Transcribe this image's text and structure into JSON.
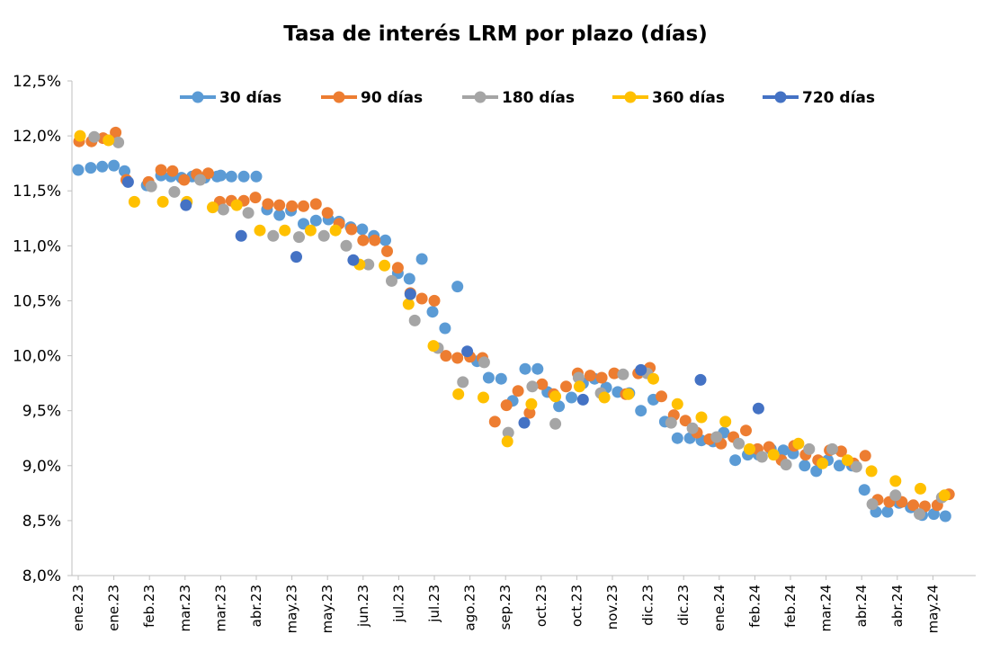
{
  "chart_data": {
    "type": "scatter",
    "title": "Tasa de interés LRM por plazo (días)",
    "xlabel": "",
    "ylabel": "",
    "ylim": [
      8.0,
      12.5
    ],
    "yticks": [
      "8,0%",
      "8,5%",
      "9,0%",
      "9,5%",
      "10,0%",
      "10,5%",
      "11,0%",
      "11,5%",
      "12,0%",
      "12,5%"
    ],
    "xlim": [
      0,
      100
    ],
    "xticks": [
      {
        "x": 0,
        "label": "ene.23"
      },
      {
        "x": 4,
        "label": "ene.23"
      },
      {
        "x": 8,
        "label": "feb.23"
      },
      {
        "x": 12,
        "label": "mar.23"
      },
      {
        "x": 16,
        "label": "mar.23"
      },
      {
        "x": 20,
        "label": "abr.23"
      },
      {
        "x": 24,
        "label": "may.23"
      },
      {
        "x": 28,
        "label": "may.23"
      },
      {
        "x": 32,
        "label": "jun.23"
      },
      {
        "x": 36,
        "label": "jul.23"
      },
      {
        "x": 40,
        "label": "jul.23"
      },
      {
        "x": 44,
        "label": "ago.23"
      },
      {
        "x": 48,
        "label": "sep.23"
      },
      {
        "x": 52,
        "label": "oct.23"
      },
      {
        "x": 56,
        "label": "oct.23"
      },
      {
        "x": 60,
        "label": "nov.23"
      },
      {
        "x": 64,
        "label": "dic.23"
      },
      {
        "x": 68,
        "label": "dic.23"
      },
      {
        "x": 72,
        "label": "ene.24"
      },
      {
        "x": 76,
        "label": "feb.24"
      },
      {
        "x": 80,
        "label": "feb.24"
      },
      {
        "x": 84,
        "label": "mar.24"
      },
      {
        "x": 88,
        "label": "abr.24"
      },
      {
        "x": 92,
        "label": "abr.24"
      },
      {
        "x": 96,
        "label": "may.24"
      }
    ],
    "grid": false,
    "legend_position": "top",
    "series": [
      {
        "name": "30 días",
        "color": "#5B9BD5",
        "points": [
          [
            0,
            11.69
          ],
          [
            1.4,
            11.71
          ],
          [
            2.7,
            11.72
          ],
          [
            4,
            11.73
          ],
          [
            5.2,
            11.68
          ],
          [
            7.7,
            11.55
          ],
          [
            9.3,
            11.64
          ],
          [
            10.4,
            11.63
          ],
          [
            11.6,
            11.62
          ],
          [
            12.8,
            11.63
          ],
          [
            14.2,
            11.62
          ],
          [
            15.6,
            11.63
          ],
          [
            16,
            11.64
          ],
          [
            17.2,
            11.63
          ],
          [
            18.6,
            11.63
          ],
          [
            20,
            11.63
          ],
          [
            21.2,
            11.33
          ],
          [
            22.6,
            11.28
          ],
          [
            23.9,
            11.32
          ],
          [
            25.3,
            11.2
          ],
          [
            26.7,
            11.23
          ],
          [
            28.1,
            11.24
          ],
          [
            29.3,
            11.22
          ],
          [
            30.6,
            11.17
          ],
          [
            31.9,
            11.15
          ],
          [
            33.2,
            11.09
          ],
          [
            34.5,
            11.05
          ],
          [
            35.9,
            10.75
          ],
          [
            37.2,
            10.7
          ],
          [
            38.6,
            10.88
          ],
          [
            39.8,
            10.4
          ],
          [
            41.2,
            10.25
          ],
          [
            42.6,
            10.63
          ],
          [
            44.8,
            9.95
          ],
          [
            46.1,
            9.8
          ],
          [
            47.5,
            9.79
          ],
          [
            48.8,
            9.59
          ],
          [
            50.2,
            9.88
          ],
          [
            51.6,
            9.88
          ],
          [
            52.7,
            9.67
          ],
          [
            54,
            9.54
          ],
          [
            55.4,
            9.62
          ],
          [
            56.7,
            9.75
          ],
          [
            58,
            9.79
          ],
          [
            59.3,
            9.71
          ],
          [
            60.6,
            9.67
          ],
          [
            61.9,
            9.66
          ],
          [
            63.2,
            9.5
          ],
          [
            64.6,
            9.6
          ],
          [
            65.9,
            9.4
          ],
          [
            67.3,
            9.25
          ],
          [
            68.7,
            9.25
          ],
          [
            70,
            9.23
          ],
          [
            71.3,
            9.22
          ],
          [
            72.5,
            9.3
          ],
          [
            73.8,
            9.05
          ],
          [
            75.2,
            9.1
          ],
          [
            76.4,
            9.1
          ],
          [
            77.8,
            9.15
          ],
          [
            79.2,
            9.14
          ],
          [
            80.3,
            9.11
          ],
          [
            81.6,
            9.0
          ],
          [
            82.9,
            8.95
          ],
          [
            84.2,
            9.05
          ],
          [
            85.5,
            9.0
          ],
          [
            86.9,
            9.0
          ],
          [
            88.3,
            8.78
          ],
          [
            89.6,
            8.58
          ],
          [
            90.9,
            8.58
          ],
          [
            92.2,
            8.66
          ],
          [
            93.5,
            8.62
          ],
          [
            94.8,
            8.55
          ],
          [
            96.1,
            8.56
          ],
          [
            97.4,
            8.54
          ]
        ]
      },
      {
        "name": "90 días",
        "color": "#ED7D31",
        "points": [
          [
            0.1,
            11.95
          ],
          [
            1.5,
            11.95
          ],
          [
            2.8,
            11.98
          ],
          [
            4.2,
            12.03
          ],
          [
            5.4,
            11.6
          ],
          [
            7.9,
            11.58
          ],
          [
            9.3,
            11.69
          ],
          [
            10.6,
            11.68
          ],
          [
            11.9,
            11.6
          ],
          [
            13.3,
            11.65
          ],
          [
            14.6,
            11.66
          ],
          [
            15.9,
            11.4
          ],
          [
            17.2,
            11.41
          ],
          [
            18.6,
            11.41
          ],
          [
            19.9,
            11.44
          ],
          [
            21.3,
            11.38
          ],
          [
            22.6,
            11.37
          ],
          [
            24,
            11.36
          ],
          [
            25.3,
            11.36
          ],
          [
            26.7,
            11.38
          ],
          [
            28,
            11.3
          ],
          [
            29.3,
            11.2
          ],
          [
            30.7,
            11.15
          ],
          [
            32,
            11.05
          ],
          [
            33.3,
            11.05
          ],
          [
            34.7,
            10.95
          ],
          [
            35.9,
            10.8
          ],
          [
            37.3,
            10.57
          ],
          [
            38.6,
            10.52
          ],
          [
            40,
            10.5
          ],
          [
            41.3,
            10.0
          ],
          [
            42.6,
            9.98
          ],
          [
            44,
            9.99
          ],
          [
            45.4,
            9.98
          ],
          [
            46.8,
            9.4
          ],
          [
            48.1,
            9.55
          ],
          [
            49.4,
            9.68
          ],
          [
            50.7,
            9.48
          ],
          [
            52.1,
            9.74
          ],
          [
            53.4,
            9.65
          ],
          [
            54.8,
            9.72
          ],
          [
            56.1,
            9.84
          ],
          [
            57.5,
            9.82
          ],
          [
            58.8,
            9.8
          ],
          [
            60.2,
            9.84
          ],
          [
            61.5,
            9.65
          ],
          [
            62.9,
            9.84
          ],
          [
            64.2,
            9.89
          ],
          [
            65.5,
            9.63
          ],
          [
            66.9,
            9.46
          ],
          [
            68.2,
            9.41
          ],
          [
            69.5,
            9.3
          ],
          [
            70.9,
            9.24
          ],
          [
            72.2,
            9.2
          ],
          [
            73.6,
            9.26
          ],
          [
            75,
            9.32
          ],
          [
            76.3,
            9.15
          ],
          [
            77.6,
            9.17
          ],
          [
            79,
            9.05
          ],
          [
            80.4,
            9.18
          ],
          [
            81.7,
            9.1
          ],
          [
            83.1,
            9.05
          ],
          [
            84.4,
            9.14
          ],
          [
            85.7,
            9.13
          ],
          [
            87.1,
            9.02
          ],
          [
            88.4,
            9.09
          ],
          [
            89.8,
            8.69
          ],
          [
            91.1,
            8.67
          ],
          [
            92.5,
            8.67
          ],
          [
            93.8,
            8.64
          ],
          [
            95.1,
            8.63
          ],
          [
            96.5,
            8.64
          ],
          [
            97.8,
            8.74
          ]
        ]
      },
      {
        "name": "180 días",
        "color": "#A5A5A5",
        "points": [
          [
            1.8,
            11.99
          ],
          [
            4.5,
            11.94
          ],
          [
            8.2,
            11.54
          ],
          [
            10.8,
            11.49
          ],
          [
            13.7,
            11.6
          ],
          [
            16.3,
            11.33
          ],
          [
            19.1,
            11.3
          ],
          [
            21.9,
            11.09
          ],
          [
            24.8,
            11.08
          ],
          [
            27.6,
            11.09
          ],
          [
            30.1,
            11.0
          ],
          [
            32.6,
            10.83
          ],
          [
            35.2,
            10.68
          ],
          [
            37.8,
            10.32
          ],
          [
            40.4,
            10.07
          ],
          [
            43.2,
            9.76
          ],
          [
            45.6,
            9.94
          ],
          [
            48.3,
            9.3
          ],
          [
            51,
            9.72
          ],
          [
            53.6,
            9.38
          ],
          [
            56.2,
            9.8
          ],
          [
            58.7,
            9.66
          ],
          [
            61.2,
            9.83
          ],
          [
            63.9,
            9.84
          ],
          [
            66.6,
            9.39
          ],
          [
            69,
            9.34
          ],
          [
            71.7,
            9.26
          ],
          [
            74.2,
            9.2
          ],
          [
            76.8,
            9.08
          ],
          [
            79.5,
            9.01
          ],
          [
            82.1,
            9.15
          ],
          [
            84.7,
            9.15
          ],
          [
            87.4,
            8.99
          ],
          [
            89.2,
            8.65
          ],
          [
            91.8,
            8.73
          ],
          [
            94.5,
            8.56
          ],
          [
            97,
            8.71
          ]
        ]
      },
      {
        "name": "360 días",
        "color": "#FFC000",
        "points": [
          [
            0.2,
            12.0
          ],
          [
            3.4,
            11.96
          ],
          [
            6.3,
            11.4
          ],
          [
            9.5,
            11.4
          ],
          [
            12.2,
            11.4
          ],
          [
            15.1,
            11.35
          ],
          [
            17.8,
            11.37
          ],
          [
            20.4,
            11.14
          ],
          [
            23.2,
            11.14
          ],
          [
            26.1,
            11.14
          ],
          [
            28.9,
            11.14
          ],
          [
            31.6,
            10.83
          ],
          [
            34.4,
            10.82
          ],
          [
            37.1,
            10.47
          ],
          [
            39.9,
            10.09
          ],
          [
            42.7,
            9.65
          ],
          [
            45.5,
            9.62
          ],
          [
            48.2,
            9.22
          ],
          [
            50.9,
            9.56
          ],
          [
            53.6,
            9.63
          ],
          [
            56.3,
            9.72
          ],
          [
            59.1,
            9.62
          ],
          [
            61.8,
            9.65
          ],
          [
            64.6,
            9.79
          ],
          [
            67.3,
            9.56
          ],
          [
            70,
            9.44
          ],
          [
            72.7,
            9.4
          ],
          [
            75.4,
            9.15
          ],
          [
            78.1,
            9.1
          ],
          [
            80.9,
            9.2
          ],
          [
            83.6,
            9.02
          ],
          [
            86.4,
            9.05
          ],
          [
            89.1,
            8.95
          ],
          [
            91.8,
            8.86
          ],
          [
            94.6,
            8.79
          ],
          [
            97.3,
            8.73
          ]
        ]
      },
      {
        "name": "720 días",
        "color": "#4472C4",
        "points": [
          [
            5.6,
            11.58
          ],
          [
            12.1,
            11.37
          ],
          [
            18.3,
            11.09
          ],
          [
            24.5,
            10.9
          ],
          [
            30.9,
            10.87
          ],
          [
            37.3,
            10.56
          ],
          [
            43.7,
            10.04
          ],
          [
            50.1,
            9.39
          ],
          [
            56.7,
            9.6
          ],
          [
            63.2,
            9.87
          ],
          [
            69.9,
            9.78
          ],
          [
            76.4,
            9.52
          ]
        ]
      }
    ]
  }
}
